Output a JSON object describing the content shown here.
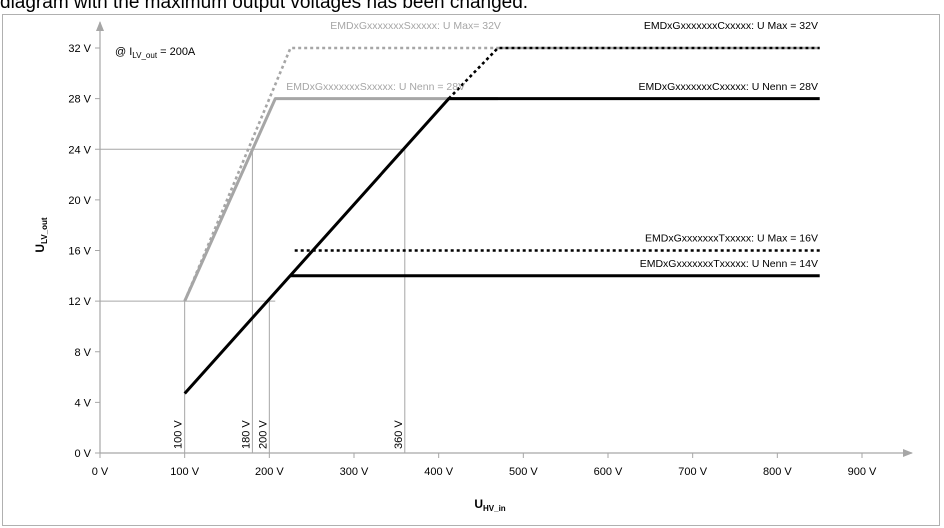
{
  "caption": "diagram with the maximum output voltages has been changed.",
  "chart_data": {
    "type": "line",
    "title": "",
    "xlabel_main": "U",
    "xlabel_sub": "HV_in",
    "ylabel_main": "U",
    "ylabel_sub": "LV_out",
    "condition": {
      "prefix": "@ I",
      "sub": "LV_out",
      "suffix": " = 200A"
    },
    "xlim": [
      0,
      900
    ],
    "ylim": [
      0,
      32
    ],
    "x_ticks": [
      0,
      100,
      200,
      300,
      400,
      500,
      600,
      700,
      800,
      900
    ],
    "x_tick_labels": [
      "0 V",
      "100 V",
      "200 V",
      "300 V",
      "400 V",
      "500 V",
      "600 V",
      "700 V",
      "800 V",
      "900 V"
    ],
    "y_ticks": [
      0,
      4,
      8,
      12,
      16,
      20,
      24,
      28,
      32
    ],
    "y_tick_labels": [
      "0 V",
      "4 V",
      "8 V",
      "12 V",
      "16 V",
      "20 V",
      "24 V",
      "28 V",
      "32 V"
    ],
    "series": [
      {
        "name": "EMDxGxxxxxxxSxxxxx: U Max= 32V",
        "color": "#a6a6a6",
        "style": "dotted",
        "x": [
          100,
          175,
          225,
          850
        ],
        "y": [
          12,
          24,
          32,
          32
        ]
      },
      {
        "name": "EMDxGxxxxxxxSxxxxx: U Nenn = 28V",
        "color": "#a6a6a6",
        "style": "solid",
        "x": [
          100,
          207,
          470
        ],
        "y": [
          12,
          28,
          28
        ]
      },
      {
        "name": "EMDxGxxxxxxxCxxxxx: U Max = 32V",
        "color": "#000000",
        "style": "dotted",
        "x": [
          412,
          470,
          850
        ],
        "y": [
          28,
          32,
          32
        ]
      },
      {
        "name": "EMDxGxxxxxxxCxxxxx: U Nenn = 28V",
        "color": "#000000",
        "style": "solid",
        "x": [
          100,
          412,
          850
        ],
        "y": [
          4.7,
          28,
          28
        ]
      },
      {
        "name": "EMDxGxxxxxxxTxxxxx: U Max = 16V",
        "color": "#000000",
        "style": "dotted",
        "x": [
          230,
          850
        ],
        "y": [
          16,
          16
        ]
      },
      {
        "name": "EMDxGxxxxxxxTxxxxx: U Nenn = 14V",
        "color": "#000000",
        "style": "solid",
        "x": [
          225,
          850
        ],
        "y": [
          14,
          14
        ]
      }
    ],
    "guides": {
      "horizontal": [
        {
          "y": 24,
          "x_to": 360
        },
        {
          "y": 12,
          "x_to": 207
        }
      ],
      "vertical": [
        {
          "x": 100,
          "label": "100 V"
        },
        {
          "x": 180,
          "label": "180 V"
        },
        {
          "x": 200,
          "label": "200 V"
        },
        {
          "x": 360,
          "label": "360 V"
        }
      ]
    },
    "annotations": [
      {
        "text": "EMDxGxxxxxxxSxxxxx: U Max= 32V",
        "x": 272,
        "y": 33.5,
        "anchor": "start",
        "color": "#a6a6a6"
      },
      {
        "text": "EMDxGxxxxxxxSxxxxx: U Nenn = 28V",
        "x": 220,
        "y": 28.7,
        "anchor": "start",
        "color": "#a6a6a6"
      },
      {
        "text": "EMDxGxxxxxxxCxxxxx: U Max = 32V",
        "x": 848,
        "y": 33.5,
        "anchor": "end",
        "color": "#000000"
      },
      {
        "text": "EMDxGxxxxxxxCxxxxx: U Nenn = 28V",
        "x": 848,
        "y": 28.7,
        "anchor": "end",
        "color": "#000000"
      },
      {
        "text": "EMDxGxxxxxxxTxxxxx: U Max = 16V",
        "x": 848,
        "y": 16.7,
        "anchor": "end",
        "color": "#000000"
      },
      {
        "text": "EMDxGxxxxxxxTxxxxx: U Nenn = 14V",
        "x": 848,
        "y": 14.7,
        "anchor": "end",
        "color": "#000000"
      }
    ],
    "grid": false,
    "legend": "none"
  }
}
